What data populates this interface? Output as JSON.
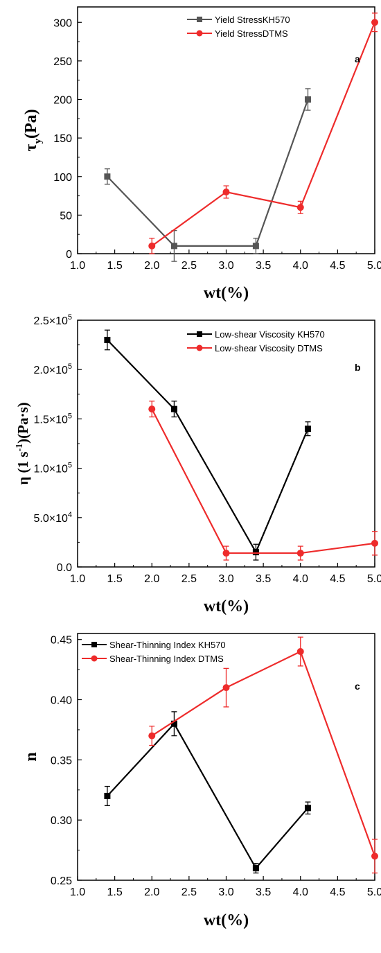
{
  "chart_data": [
    {
      "type": "line",
      "panel_label": "a",
      "xlabel": "wt(%)",
      "ylabel_main": "τ",
      "ylabel_sub": "y",
      "ylabel_rest": "(Pa)",
      "xlim": [
        1.0,
        5.0
      ],
      "ylim": [
        0,
        320
      ],
      "x_ticks": [
        "1.0",
        "1.5",
        "2.0",
        "2.5",
        "3.0",
        "3.5",
        "4.0",
        "4.5",
        "5.0"
      ],
      "y_ticks": [
        "0",
        "50",
        "100",
        "150",
        "200",
        "250",
        "300"
      ],
      "legend_position": "top-right",
      "series": [
        {
          "name": "Yield StressKH570",
          "color": "#555555",
          "marker": "square",
          "x": [
            1.4,
            2.3,
            3.4,
            4.1
          ],
          "y": [
            100,
            10,
            10,
            200
          ],
          "err": [
            10,
            20,
            10,
            14
          ]
        },
        {
          "name": "Yield StressDTMS",
          "color": "#ee2b2b",
          "marker": "circle",
          "x": [
            2.0,
            3.0,
            4.0,
            5.0
          ],
          "y": [
            10,
            80,
            60,
            300
          ],
          "err": [
            10,
            8,
            8,
            12
          ]
        }
      ]
    },
    {
      "type": "line",
      "panel_label": "b",
      "xlabel": "wt(%)",
      "ylabel_main": "η (1 s",
      "ylabel_sup": "-1",
      "ylabel_rest": ")(Pa·s)",
      "xlim": [
        1.0,
        5.0
      ],
      "ylim": [
        0,
        250000
      ],
      "x_ticks": [
        "1.0",
        "1.5",
        "2.0",
        "2.5",
        "3.0",
        "3.5",
        "4.0",
        "4.5",
        "5.0"
      ],
      "y_ticks": [
        "0.0",
        "5.0×10",
        "1.0×10",
        "1.5×10",
        "2.0×10",
        "2.5×10"
      ],
      "y_tick_exponents": [
        "",
        "4",
        "5",
        "5",
        "5",
        "5"
      ],
      "legend_position": "top-right",
      "series": [
        {
          "name": "Low-shear Viscosity KH570",
          "color": "#000000",
          "marker": "square",
          "x": [
            1.4,
            2.3,
            3.4,
            4.1
          ],
          "y": [
            230000,
            160000,
            15000,
            140000
          ],
          "err": [
            10000,
            8000,
            8000,
            7000
          ]
        },
        {
          "name": "Low-shear Viscosity DTMS",
          "color": "#ee2b2b",
          "marker": "circle",
          "x": [
            2.0,
            3.0,
            4.0,
            5.0
          ],
          "y": [
            160000,
            14000,
            14000,
            24000
          ],
          "err": [
            8000,
            7000,
            7000,
            12000
          ]
        }
      ]
    },
    {
      "type": "line",
      "panel_label": "c",
      "xlabel": "wt(%)",
      "ylabel_main": "n",
      "xlim": [
        1.0,
        5.0
      ],
      "ylim": [
        0.25,
        0.455
      ],
      "x_ticks": [
        "1.0",
        "1.5",
        "2.0",
        "2.5",
        "3.0",
        "3.5",
        "4.0",
        "4.5",
        "5.0"
      ],
      "y_ticks": [
        "0.25",
        "0.30",
        "0.35",
        "0.40",
        "0.45"
      ],
      "legend_position": "top-left",
      "series": [
        {
          "name": "Shear-Thinning Index KH570",
          "color": "#000000",
          "marker": "square",
          "x": [
            1.4,
            2.3,
            3.4,
            4.1
          ],
          "y": [
            0.32,
            0.38,
            0.26,
            0.31
          ],
          "err": [
            0.008,
            0.01,
            0.004,
            0.005
          ]
        },
        {
          "name": "Shear-Thinning Index DTMS",
          "color": "#ee2b2b",
          "marker": "circle",
          "x": [
            2.0,
            3.0,
            4.0,
            5.0
          ],
          "y": [
            0.37,
            0.41,
            0.44,
            0.27
          ],
          "err": [
            0.008,
            0.016,
            0.012,
            0.014
          ]
        }
      ]
    }
  ]
}
